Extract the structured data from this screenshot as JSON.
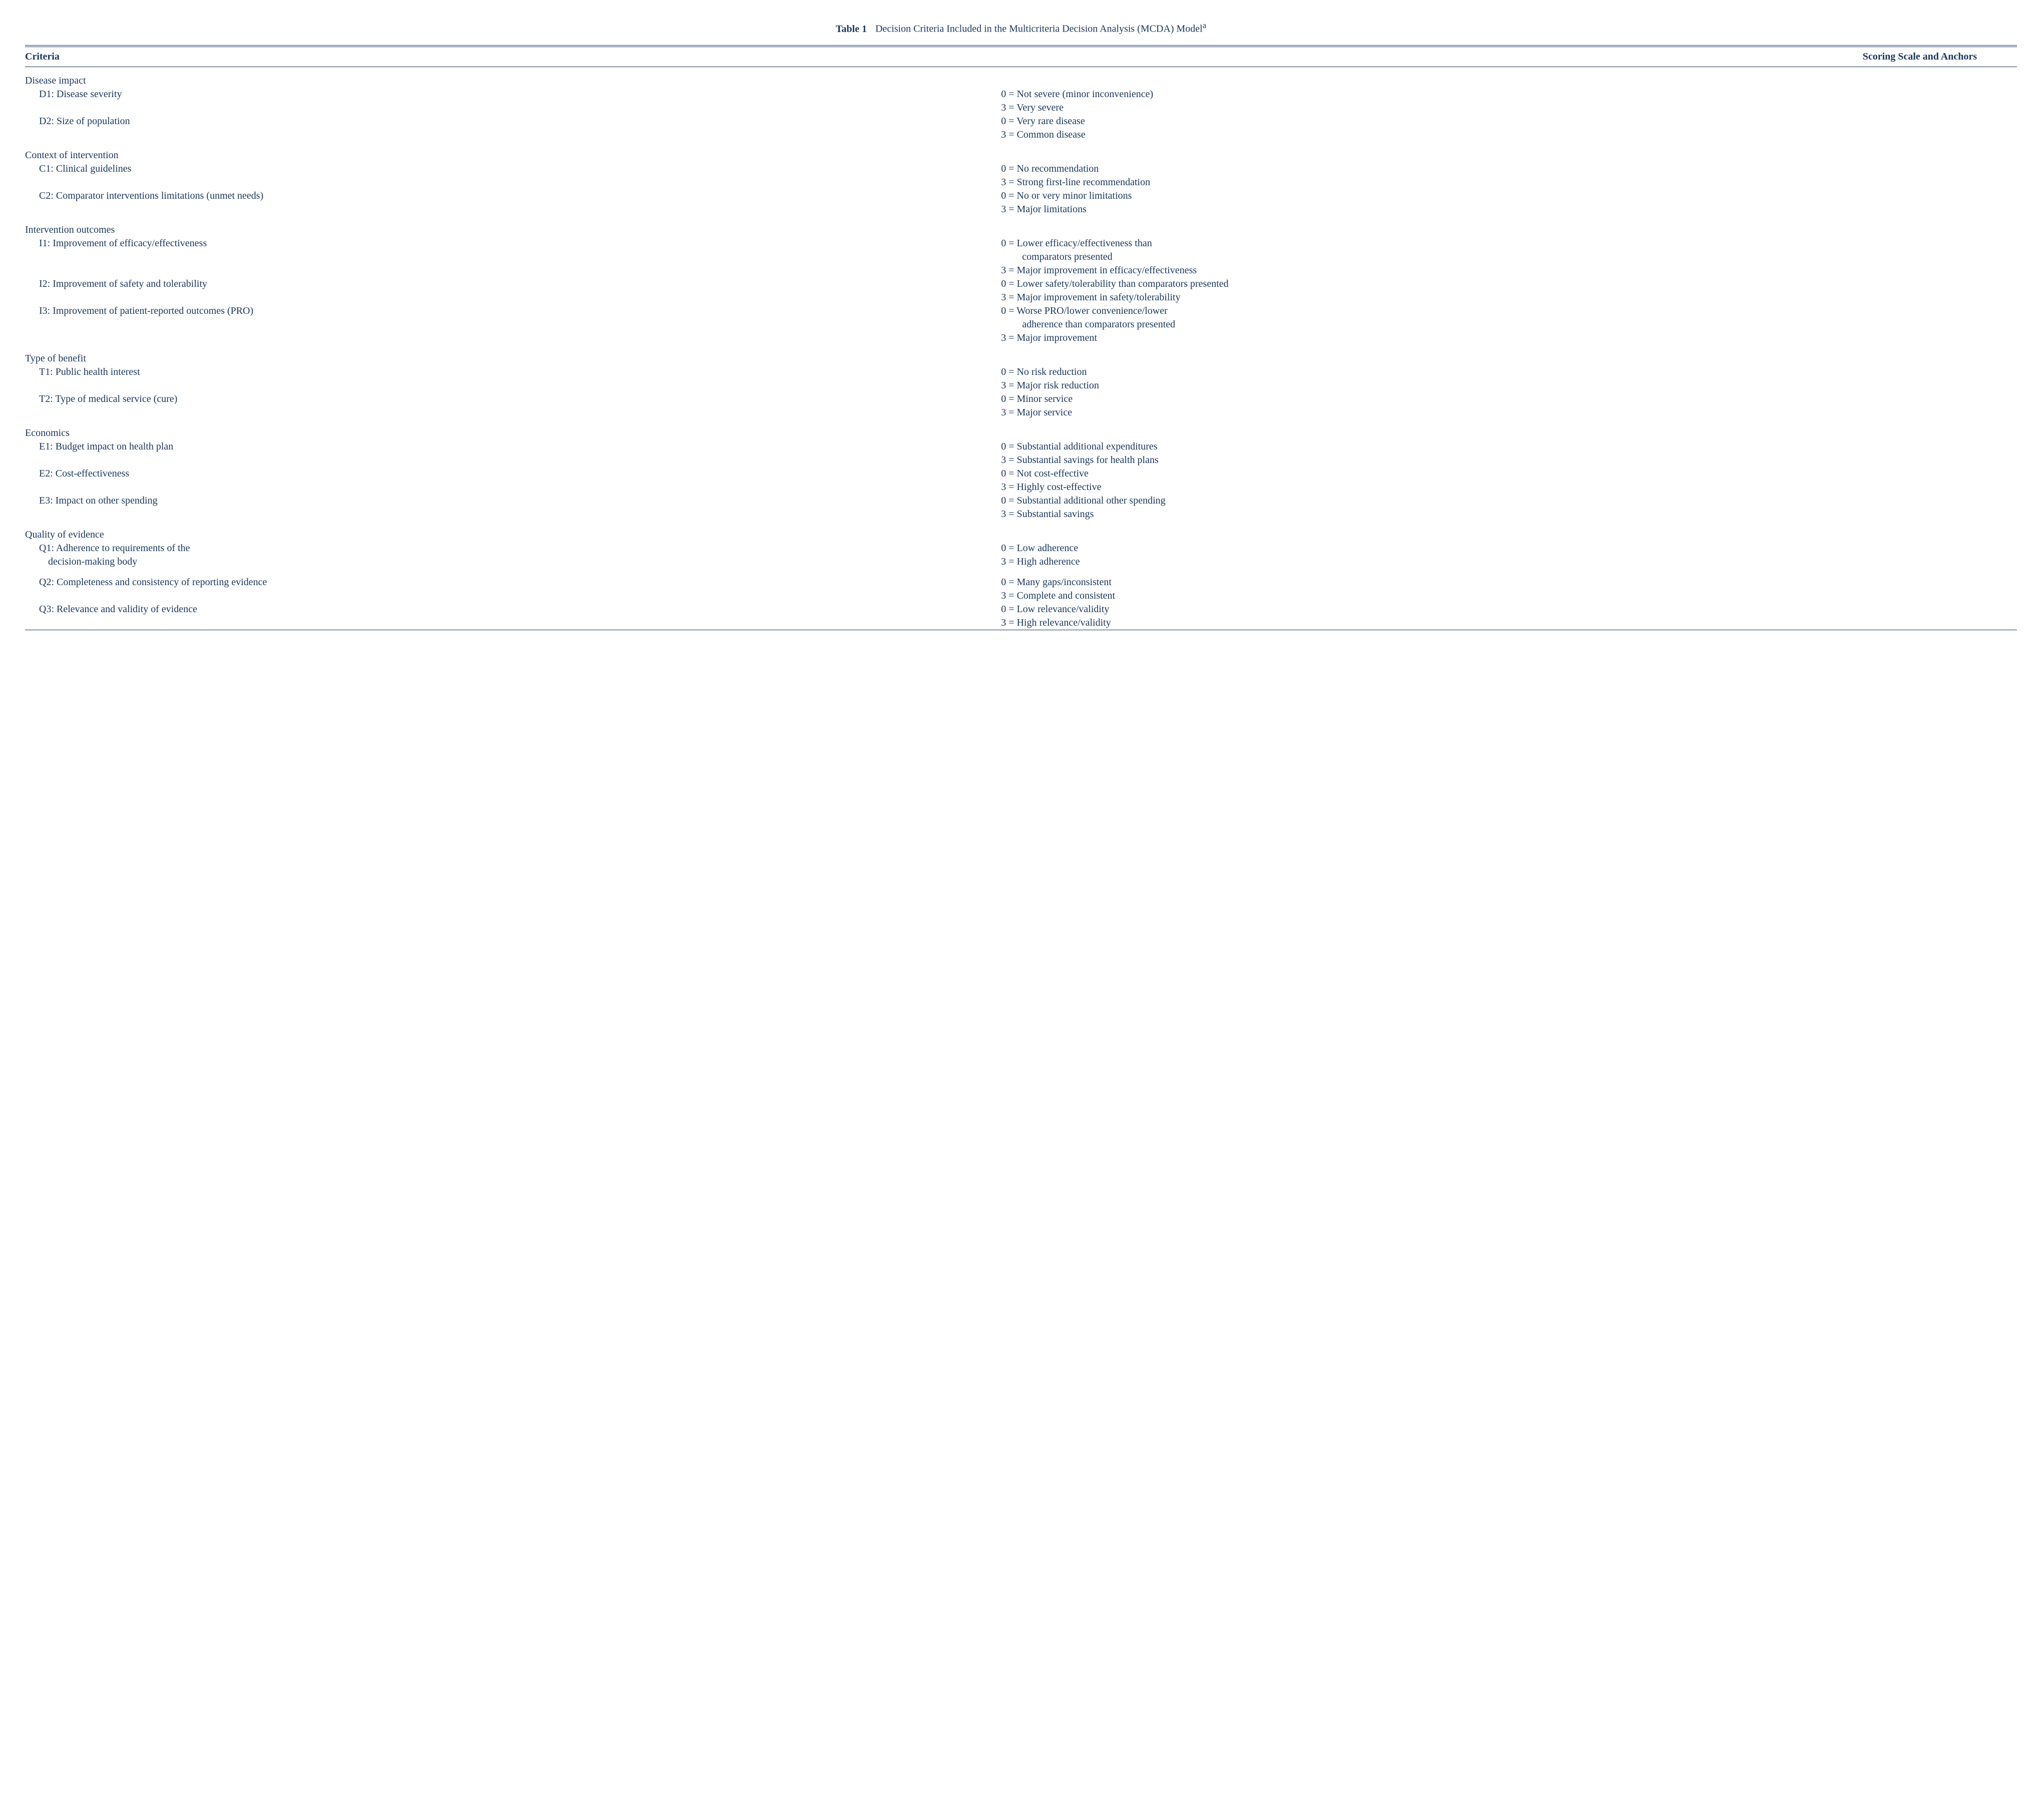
{
  "title": {
    "label": "Table 1",
    "text": "Decision Criteria Included in the Multicriteria Decision Analysis (MCDA) Model",
    "superscript": "a"
  },
  "headers": {
    "criteria": "Criteria",
    "scoring": "Scoring Scale and Anchors"
  },
  "groups": [
    {
      "name": "Disease impact",
      "items": [
        {
          "code": "D1",
          "label": "D1: Disease severity",
          "anchors": [
            "0 = Not severe (minor inconvenience)",
            "3 = Very severe"
          ]
        },
        {
          "code": "D2",
          "label": "D2: Size of population",
          "anchors": [
            "0 = Very rare disease",
            "3 = Common disease"
          ]
        }
      ]
    },
    {
      "name": "Context of intervention",
      "items": [
        {
          "code": "C1",
          "label": "C1: Clinical guidelines",
          "anchors": [
            "0 = No recommendation",
            "3 = Strong first-line recommendation"
          ]
        },
        {
          "code": "C2",
          "label": "C2: Comparator interventions limitations (unmet needs)",
          "anchors": [
            "0 = No or very minor limitations",
            "3 = Major limitations"
          ]
        }
      ]
    },
    {
      "name": "Intervention outcomes",
      "items": [
        {
          "code": "I1",
          "label": "I1: Improvement of efficacy/effectiveness",
          "anchors": [
            "0 = Lower efficacy/effectiveness than",
            "comparators presented",
            "3 = Major improvement in efficacy/effectiveness"
          ],
          "cont": [
            1
          ]
        },
        {
          "code": "I2",
          "label": "I2: Improvement of safety and tolerability",
          "anchors": [
            "0 = Lower safety/tolerability than comparators presented",
            "3 = Major improvement in safety/tolerability"
          ]
        },
        {
          "code": "I3",
          "label": "I3: Improvement of patient-reported outcomes (PRO)",
          "anchors": [
            "0 = Worse PRO/lower convenience/lower",
            "adherence than comparators presented",
            "3 = Major improvement"
          ],
          "cont": [
            1
          ]
        }
      ]
    },
    {
      "name": "Type of benefit",
      "items": [
        {
          "code": "T1",
          "label": "T1: Public health interest",
          "anchors": [
            "0 = No risk reduction",
            "3 = Major risk reduction"
          ]
        },
        {
          "code": "T2",
          "label": "T2: Type of medical service (cure)",
          "anchors": [
            "0 = Minor service",
            "3 = Major service"
          ]
        }
      ]
    },
    {
      "name": "Economics",
      "items": [
        {
          "code": "E1",
          "label": "E1: Budget impact on health plan",
          "anchors": [
            "0 = Substantial additional expenditures",
            "3 = Substantial savings for health plans"
          ]
        },
        {
          "code": "E2",
          "label": "E2: Cost-effectiveness",
          "anchors": [
            "0 = Not cost-effective",
            "3 = Highly cost-effective"
          ]
        },
        {
          "code": "E3",
          "label": "E3: Impact on other spending",
          "anchors": [
            "0 = Substantial additional other spending",
            "3 = Substantial savings"
          ]
        }
      ]
    },
    {
      "name": "Quality of evidence",
      "items": [
        {
          "code": "Q1",
          "label": "Q1: Adherence to requirements of the",
          "label2": "decision-making body",
          "anchors": [
            "0 = Low adherence",
            "3 = High adherence"
          ]
        },
        {
          "code": "Q2",
          "label": "Q2: Completeness and consistency of reporting evidence",
          "anchors": [
            "0 = Many gaps/inconsistent",
            "3 = Complete and consistent"
          ],
          "gapBefore": true
        },
        {
          "code": "Q3",
          "label": "Q3: Relevance and validity of evidence",
          "anchors": [
            "0 = Low relevance/validity",
            "3 = High relevance/validity"
          ]
        }
      ]
    }
  ]
}
